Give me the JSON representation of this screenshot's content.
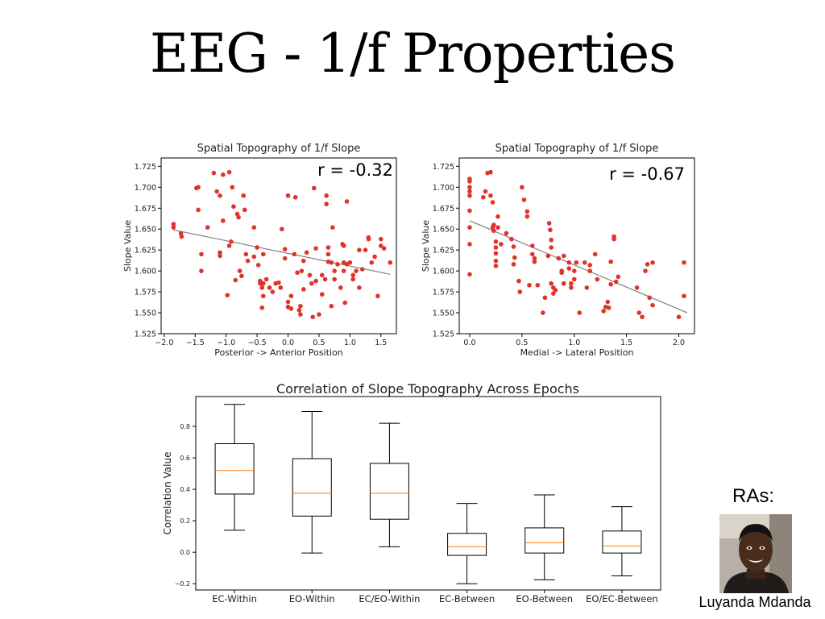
{
  "slide": {
    "title": "EEG - 1/f Properties"
  },
  "ras": {
    "label": "RAs:",
    "name": "Luyanda Mdanda"
  },
  "colors": {
    "points": "#e0332a",
    "fit_line": "#7f7f7f",
    "median": "#ff7f0e",
    "box": "#000000"
  },
  "chart_data": [
    {
      "type": "scatter",
      "title": "Spatial Topography of 1/f Slope",
      "xlabel": "Posterior -> Anterior Position",
      "ylabel": "Slope Value",
      "annotation": "r = -0.32",
      "xlim": [
        -2.05,
        1.75
      ],
      "ylim": [
        1.525,
        1.735
      ],
      "xticks": [
        -2.0,
        -1.5,
        -1.0,
        -0.5,
        0.0,
        0.5,
        1.0,
        1.5
      ],
      "xtick_labels": [
        "−2.0",
        "−1.5",
        "−1.0",
        "−0.5",
        "0.0",
        "0.5",
        "1.0",
        "1.5"
      ],
      "yticks": [
        1.525,
        1.55,
        1.575,
        1.6,
        1.625,
        1.65,
        1.675,
        1.7,
        1.725
      ],
      "ytick_labels": [
        "1.525",
        "1.550",
        "1.575",
        "1.600",
        "1.625",
        "1.650",
        "1.675",
        "1.700",
        "1.725"
      ],
      "fit_line": [
        [
          -1.85,
          1.649
        ],
        [
          1.65,
          1.596
        ]
      ],
      "points": [
        [
          -1.85,
          1.656
        ],
        [
          -1.85,
          1.652
        ],
        [
          -1.73,
          1.645
        ],
        [
          -1.72,
          1.641
        ],
        [
          -1.48,
          1.699
        ],
        [
          -1.45,
          1.7
        ],
        [
          -1.45,
          1.673
        ],
        [
          -1.4,
          1.62
        ],
        [
          -1.4,
          1.6
        ],
        [
          -1.3,
          1.652
        ],
        [
          -1.2,
          1.717
        ],
        [
          -1.15,
          1.695
        ],
        [
          -1.1,
          1.622
        ],
        [
          -1.1,
          1.618
        ],
        [
          -1.1,
          1.69
        ],
        [
          -1.05,
          1.715
        ],
        [
          -1.05,
          1.66
        ],
        [
          -0.98,
          1.571
        ],
        [
          -0.95,
          1.63
        ],
        [
          -0.95,
          1.718
        ],
        [
          -0.92,
          1.635
        ],
        [
          -0.9,
          1.7
        ],
        [
          -0.88,
          1.677
        ],
        [
          -0.85,
          1.589
        ],
        [
          -0.82,
          1.668
        ],
        [
          -0.8,
          1.664
        ],
        [
          -0.78,
          1.6
        ],
        [
          -0.75,
          1.594
        ],
        [
          -0.72,
          1.69
        ],
        [
          -0.7,
          1.673
        ],
        [
          -0.68,
          1.62
        ],
        [
          -0.65,
          1.612
        ],
        [
          -0.55,
          1.652
        ],
        [
          -0.55,
          1.617
        ],
        [
          -0.5,
          1.628
        ],
        [
          -0.48,
          1.607
        ],
        [
          -0.45,
          1.588
        ],
        [
          -0.45,
          1.585
        ],
        [
          -0.42,
          1.58
        ],
        [
          -0.42,
          1.556
        ],
        [
          -0.4,
          1.62
        ],
        [
          -0.4,
          1.57
        ],
        [
          -0.4,
          1.585
        ],
        [
          -0.35,
          1.59
        ],
        [
          -0.3,
          1.58
        ],
        [
          -0.25,
          1.575
        ],
        [
          -0.2,
          1.585
        ],
        [
          -0.15,
          1.586
        ],
        [
          -0.12,
          1.58
        ],
        [
          -0.1,
          1.65
        ],
        [
          -0.05,
          1.626
        ],
        [
          -0.05,
          1.615
        ],
        [
          0.0,
          1.69
        ],
        [
          0.0,
          1.563
        ],
        [
          0.0,
          1.557
        ],
        [
          0.05,
          1.555
        ],
        [
          0.05,
          1.57
        ],
        [
          0.1,
          1.62
        ],
        [
          0.12,
          1.688
        ],
        [
          0.15,
          1.598
        ],
        [
          0.18,
          1.553
        ],
        [
          0.2,
          1.548
        ],
        [
          0.2,
          1.558
        ],
        [
          0.22,
          1.6
        ],
        [
          0.25,
          1.612
        ],
        [
          0.25,
          1.578
        ],
        [
          0.3,
          1.622
        ],
        [
          0.35,
          1.595
        ],
        [
          0.38,
          1.585
        ],
        [
          0.4,
          1.545
        ],
        [
          0.42,
          1.699
        ],
        [
          0.45,
          1.588
        ],
        [
          0.45,
          1.627
        ],
        [
          0.5,
          1.548
        ],
        [
          0.55,
          1.595
        ],
        [
          0.55,
          1.572
        ],
        [
          0.6,
          1.59
        ],
        [
          0.62,
          1.69
        ],
        [
          0.62,
          1.68
        ],
        [
          0.65,
          1.611
        ],
        [
          0.65,
          1.628
        ],
        [
          0.65,
          1.62
        ],
        [
          0.7,
          1.558
        ],
        [
          0.7,
          1.61
        ],
        [
          0.72,
          1.652
        ],
        [
          0.75,
          1.6
        ],
        [
          0.75,
          1.59
        ],
        [
          0.8,
          1.608
        ],
        [
          0.85,
          1.58
        ],
        [
          0.88,
          1.632
        ],
        [
          0.9,
          1.61
        ],
        [
          0.9,
          1.63
        ],
        [
          0.9,
          1.6
        ],
        [
          0.92,
          1.562
        ],
        [
          0.95,
          1.608
        ],
        [
          0.95,
          1.683
        ],
        [
          1.0,
          1.61
        ],
        [
          1.05,
          1.59
        ],
        [
          1.05,
          1.595
        ],
        [
          1.1,
          1.6
        ],
        [
          1.15,
          1.625
        ],
        [
          1.15,
          1.58
        ],
        [
          1.2,
          1.602
        ],
        [
          1.25,
          1.625
        ],
        [
          1.3,
          1.638
        ],
        [
          1.3,
          1.64
        ],
        [
          1.35,
          1.61
        ],
        [
          1.4,
          1.617
        ],
        [
          1.45,
          1.57
        ],
        [
          1.5,
          1.63
        ],
        [
          1.5,
          1.638
        ],
        [
          1.55,
          1.627
        ],
        [
          1.65,
          1.61
        ]
      ]
    },
    {
      "type": "scatter",
      "title": "Spatial Topography of 1/f Slope",
      "xlabel": "Medial -> Lateral Position",
      "ylabel": "Slope Value",
      "annotation": "r = -0.67",
      "xlim": [
        -0.1,
        2.15
      ],
      "ylim": [
        1.525,
        1.735
      ],
      "xticks": [
        0.0,
        0.5,
        1.0,
        1.5,
        2.0
      ],
      "xtick_labels": [
        "0.0",
        "0.5",
        "1.0",
        "1.5",
        "2.0"
      ],
      "yticks": [
        1.525,
        1.55,
        1.575,
        1.6,
        1.625,
        1.65,
        1.675,
        1.7,
        1.725
      ],
      "ytick_labels": [
        "1.525",
        "1.550",
        "1.575",
        "1.600",
        "1.625",
        "1.650",
        "1.675",
        "1.700",
        "1.725"
      ],
      "fit_line": [
        [
          0.0,
          1.66
        ],
        [
          2.08,
          1.55
        ]
      ],
      "points": [
        [
          0.0,
          1.71
        ],
        [
          0.0,
          1.707
        ],
        [
          0.0,
          1.7
        ],
        [
          0.0,
          1.695
        ],
        [
          0.0,
          1.69
        ],
        [
          0.0,
          1.672
        ],
        [
          0.0,
          1.652
        ],
        [
          0.0,
          1.632
        ],
        [
          0.0,
          1.596
        ],
        [
          0.13,
          1.688
        ],
        [
          0.15,
          1.695
        ],
        [
          0.17,
          1.717
        ],
        [
          0.2,
          1.718
        ],
        [
          0.2,
          1.69
        ],
        [
          0.22,
          1.682
        ],
        [
          0.22,
          1.652
        ],
        [
          0.23,
          1.655
        ],
        [
          0.23,
          1.648
        ],
        [
          0.25,
          1.635
        ],
        [
          0.25,
          1.628
        ],
        [
          0.25,
          1.621
        ],
        [
          0.25,
          1.612
        ],
        [
          0.25,
          1.606
        ],
        [
          0.27,
          1.665
        ],
        [
          0.27,
          1.652
        ],
        [
          0.3,
          1.632
        ],
        [
          0.35,
          1.645
        ],
        [
          0.4,
          1.638
        ],
        [
          0.42,
          1.629
        ],
        [
          0.42,
          1.608
        ],
        [
          0.43,
          1.616
        ],
        [
          0.47,
          1.588
        ],
        [
          0.48,
          1.575
        ],
        [
          0.5,
          1.7
        ],
        [
          0.52,
          1.685
        ],
        [
          0.55,
          1.671
        ],
        [
          0.55,
          1.665
        ],
        [
          0.57,
          1.583
        ],
        [
          0.6,
          1.63
        ],
        [
          0.6,
          1.62
        ],
        [
          0.62,
          1.611
        ],
        [
          0.62,
          1.615
        ],
        [
          0.65,
          1.583
        ],
        [
          0.7,
          1.55
        ],
        [
          0.72,
          1.568
        ],
        [
          0.75,
          1.618
        ],
        [
          0.76,
          1.657
        ],
        [
          0.77,
          1.649
        ],
        [
          0.78,
          1.637
        ],
        [
          0.78,
          1.628
        ],
        [
          0.78,
          1.585
        ],
        [
          0.8,
          1.58
        ],
        [
          0.8,
          1.573
        ],
        [
          0.82,
          1.577
        ],
        [
          0.85,
          1.615
        ],
        [
          0.88,
          1.6
        ],
        [
          0.88,
          1.598
        ],
        [
          0.9,
          1.618
        ],
        [
          0.9,
          1.585
        ],
        [
          0.95,
          1.61
        ],
        [
          0.95,
          1.603
        ],
        [
          0.97,
          1.58
        ],
        [
          0.97,
          1.585
        ],
        [
          1.0,
          1.59
        ],
        [
          1.0,
          1.6
        ],
        [
          1.02,
          1.61
        ],
        [
          1.05,
          1.55
        ],
        [
          1.1,
          1.61
        ],
        [
          1.12,
          1.58
        ],
        [
          1.15,
          1.6
        ],
        [
          1.15,
          1.607
        ],
        [
          1.2,
          1.62
        ],
        [
          1.22,
          1.59
        ],
        [
          1.28,
          1.552
        ],
        [
          1.3,
          1.557
        ],
        [
          1.32,
          1.563
        ],
        [
          1.33,
          1.556
        ],
        [
          1.35,
          1.611
        ],
        [
          1.35,
          1.584
        ],
        [
          1.38,
          1.641
        ],
        [
          1.38,
          1.638
        ],
        [
          1.4,
          1.587
        ],
        [
          1.42,
          1.593
        ],
        [
          1.6,
          1.58
        ],
        [
          1.62,
          1.55
        ],
        [
          1.65,
          1.545
        ],
        [
          1.68,
          1.6
        ],
        [
          1.7,
          1.608
        ],
        [
          1.72,
          1.568
        ],
        [
          1.75,
          1.61
        ],
        [
          1.75,
          1.559
        ],
        [
          2.0,
          1.545
        ],
        [
          2.05,
          1.61
        ],
        [
          2.05,
          1.57
        ]
      ]
    },
    {
      "type": "boxplot",
      "title": "Correlation of Slope Topography Across Epochs",
      "xlabel": "",
      "ylabel": "Correlation Value",
      "ylim": [
        -0.24,
        0.99
      ],
      "yticks": [
        -0.2,
        0.0,
        0.2,
        0.4,
        0.6,
        0.8
      ],
      "ytick_labels": [
        "−0.2",
        "0.0",
        "0.2",
        "0.4",
        "0.6",
        "0.8"
      ],
      "categories": [
        "EC-Within",
        "EO-Within",
        "EC/EO-Within",
        "EC-Between",
        "EO-Between",
        "EO/EC-Between"
      ],
      "boxes": [
        {
          "whisker_low": 0.14,
          "q1": 0.37,
          "median": 0.52,
          "q3": 0.69,
          "whisker_high": 0.94
        },
        {
          "whisker_low": -0.005,
          "q1": 0.23,
          "median": 0.375,
          "q3": 0.595,
          "whisker_high": 0.895
        },
        {
          "whisker_low": 0.035,
          "q1": 0.21,
          "median": 0.375,
          "q3": 0.565,
          "whisker_high": 0.82
        },
        {
          "whisker_low": -0.2,
          "q1": -0.02,
          "median": 0.035,
          "q3": 0.12,
          "whisker_high": 0.31
        },
        {
          "whisker_low": -0.175,
          "q1": -0.005,
          "median": 0.06,
          "q3": 0.155,
          "whisker_high": 0.365
        },
        {
          "whisker_low": -0.15,
          "q1": -0.005,
          "median": 0.04,
          "q3": 0.135,
          "whisker_high": 0.29
        }
      ]
    }
  ]
}
